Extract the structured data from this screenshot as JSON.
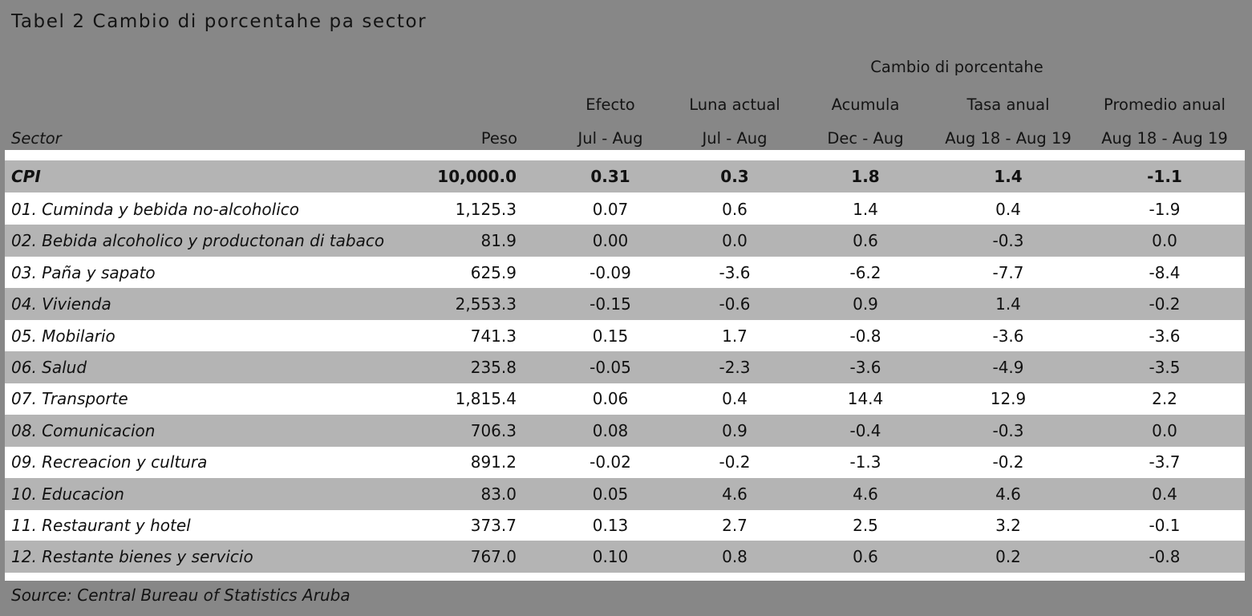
{
  "title": "Tabel 2 Cambio di porcentahe pa sector",
  "header": {
    "group_label": "Cambio di porcentahe",
    "sector": "Sector",
    "peso": "Peso",
    "columns": [
      {
        "top": "Efecto",
        "bottom": "Jul - Aug"
      },
      {
        "top": "Luna actual",
        "bottom": "Jul - Aug"
      },
      {
        "top": "Acumula",
        "bottom": "Dec - Aug"
      },
      {
        "top": "Tasa anual",
        "bottom": "Aug 18 - Aug 19"
      },
      {
        "top": "Promedio anual",
        "bottom": "Aug 18 - Aug 19"
      }
    ]
  },
  "rows": [
    {
      "sector": "CPI",
      "peso": "10,000.0",
      "v": [
        "0.31",
        "0.3",
        "1.8",
        "1.4",
        "-1.1"
      ]
    },
    {
      "sector": "01. Cuminda y bebida no-alcoholico",
      "peso": "1,125.3",
      "v": [
        "0.07",
        "0.6",
        "1.4",
        "0.4",
        "-1.9"
      ]
    },
    {
      "sector": "02. Bebida alcoholico y productonan di tabaco",
      "peso": "81.9",
      "v": [
        "0.00",
        "0.0",
        "0.6",
        "-0.3",
        "0.0"
      ]
    },
    {
      "sector": "03. Paña y sapato",
      "peso": "625.9",
      "v": [
        "-0.09",
        "-3.6",
        "-6.2",
        "-7.7",
        "-8.4"
      ]
    },
    {
      "sector": "04. Vivienda",
      "peso": "2,553.3",
      "v": [
        "-0.15",
        "-0.6",
        "0.9",
        "1.4",
        "-0.2"
      ]
    },
    {
      "sector": "05. Mobilario",
      "peso": "741.3",
      "v": [
        "0.15",
        "1.7",
        "-0.8",
        "-3.6",
        "-3.6"
      ]
    },
    {
      "sector": "06. Salud",
      "peso": "235.8",
      "v": [
        "-0.05",
        "-2.3",
        "-3.6",
        "-4.9",
        "-3.5"
      ]
    },
    {
      "sector": "07. Transporte",
      "peso": "1,815.4",
      "v": [
        "0.06",
        "0.4",
        "14.4",
        "12.9",
        "2.2"
      ]
    },
    {
      "sector": "08. Comunicacion",
      "peso": "706.3",
      "v": [
        "0.08",
        "0.9",
        "-0.4",
        "-0.3",
        "0.0"
      ]
    },
    {
      "sector": "09. Recreacion y cultura",
      "peso": "891.2",
      "v": [
        "-0.02",
        "-0.2",
        "-1.3",
        "-0.2",
        "-3.7"
      ]
    },
    {
      "sector": "10. Educacion",
      "peso": "83.0",
      "v": [
        "0.05",
        "4.6",
        "4.6",
        "4.6",
        "0.4"
      ]
    },
    {
      "sector": "11. Restaurant y hotel",
      "peso": "373.7",
      "v": [
        "0.13",
        "2.7",
        "2.5",
        "3.2",
        "-0.1"
      ]
    },
    {
      "sector": "12. Restante bienes y servicio",
      "peso": "767.0",
      "v": [
        "0.10",
        "0.8",
        "0.6",
        "0.2",
        "-0.8"
      ]
    }
  ],
  "source": "Source: Central Bureau of Statistics Aruba",
  "colors": {
    "background": "#878787",
    "shaded_row": "#b4b4b4",
    "plain_row": "#ffffff"
  }
}
